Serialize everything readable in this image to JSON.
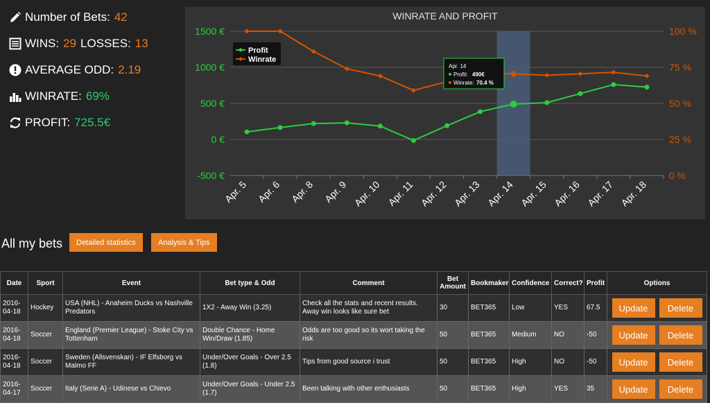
{
  "stats": {
    "bets_label": "Number of Bets:",
    "bets_value": "42",
    "wins_label": "WINS:",
    "wins_value": "29",
    "losses_label": "LOSSES:",
    "losses_value": "13",
    "avg_label": "AVERAGE ODD:",
    "avg_value": "2.19",
    "winrate_label": "WINRATE:",
    "winrate_value": "69%",
    "profit_label": "PROFIT:",
    "profit_value": "725.5€"
  },
  "chart_data": {
    "type": "line",
    "title": "WINRATE AND PROFIT",
    "categories": [
      "Apr. 5",
      "Apr. 6",
      "Apr. 8",
      "Apr. 9",
      "Apr. 10",
      "Apr. 11",
      "Apr. 12",
      "Apr. 13",
      "Apr. 14",
      "Apr. 15",
      "Apr. 16",
      "Apr. 17",
      "Apr. 18"
    ],
    "series": [
      {
        "name": "Profit",
        "axis": "left",
        "color": "#2ecc40",
        "values": [
          105,
          165,
          220,
          230,
          185,
          -15,
          190,
          385,
          490,
          510,
          635,
          760,
          725
        ]
      },
      {
        "name": "Winrate",
        "axis": "right",
        "color": "#d35400",
        "values": [
          100,
          100,
          86,
          74,
          69,
          59,
          65,
          71.5,
          70.4,
          69.5,
          70.5,
          71.5,
          69
        ]
      }
    ],
    "y_left": {
      "min": -500,
      "max": 1500,
      "ticks": [
        "-500 €",
        "0 €",
        "500 €",
        "1000 €",
        "1500 €"
      ],
      "tick_values": [
        -500,
        0,
        500,
        1000,
        1500
      ]
    },
    "y_right": {
      "min": 0,
      "max": 100,
      "ticks": [
        "0 %",
        "25 %",
        "50 %",
        "75 %",
        "100 %"
      ],
      "tick_values": [
        0,
        25,
        50,
        75,
        100
      ]
    },
    "legend": "top-left",
    "grid": true,
    "highlight_category": "Apr. 14",
    "tooltip": {
      "title": "Apr. 14",
      "profit_label": "Profit:",
      "profit_value": "490€",
      "winrate_label": "Winrate:",
      "winrate_value": "70.4 %"
    }
  },
  "section": {
    "title": "All my bets",
    "detailed_btn": "Detailed statistics",
    "analysis_btn": "Analysis & Tips"
  },
  "table": {
    "headers": [
      "Date",
      "Sport",
      "Event",
      "Bet type & Odd",
      "Comment",
      "Bet Amount",
      "Bookmaker",
      "Confidence",
      "Correct?",
      "Profit",
      "Options"
    ],
    "update_label": "Update",
    "delete_label": "Delete",
    "rows": [
      {
        "date": "2016-04-18",
        "sport": "Hockey",
        "event": "USA (NHL) - Anaheim Ducks vs Nashville Predators",
        "bet": "1X2 - Away Win (3.25)",
        "comment": "Check all the stats and recent results. Away win looks like sure bet",
        "amount": "30",
        "bookmaker": "BET365",
        "confidence": "Low",
        "correct": "YES",
        "profit": "67.5"
      },
      {
        "date": "2016-04-18",
        "sport": "Soccer",
        "event": "England (Premier League) - Stoke City vs Tottenham",
        "bet": "Double Chance - Home Win/Draw (1.85)",
        "comment": "Odds are too good so its wort taking the risk",
        "amount": "50",
        "bookmaker": "BET365",
        "confidence": "Medium",
        "correct": "NO",
        "profit": "-50"
      },
      {
        "date": "2016-04-18",
        "sport": "Soccer",
        "event": "Sweden (Allsvenskan) - IF Elfsborg vs Malmo FF",
        "bet": "Under/Over Goals - Over 2.5 (1.8)",
        "comment": "Tips from good source i trust",
        "amount": "50",
        "bookmaker": "BET365",
        "confidence": "High",
        "correct": "NO",
        "profit": "-50"
      },
      {
        "date": "2016-04-17",
        "sport": "Soccer",
        "event": "Italy (Serie A) - Udinese vs Chievo",
        "bet": "Under/Over Goals - Under 2.5 (1.7)",
        "comment": "Been talking with other enthusiasts",
        "amount": "50",
        "bookmaker": "BET365",
        "confidence": "High",
        "correct": "YES",
        "profit": "35"
      }
    ]
  },
  "colors": {
    "accent": "#e67e22",
    "positive": "#2ecc71",
    "negative": "#e74c3c"
  }
}
